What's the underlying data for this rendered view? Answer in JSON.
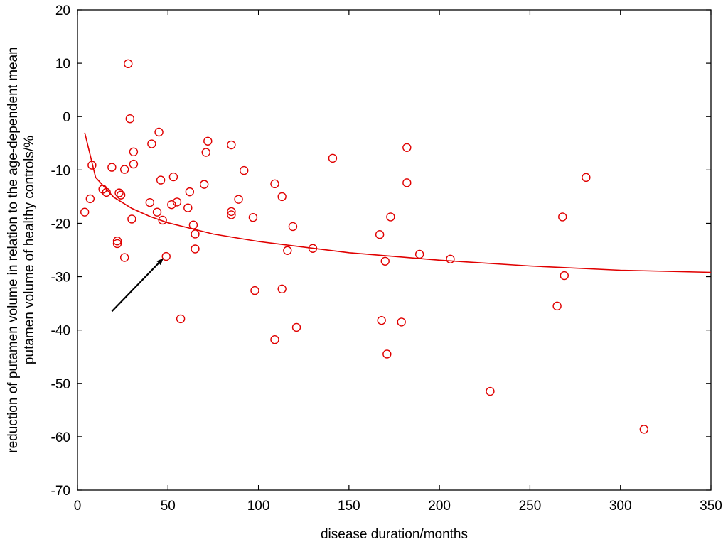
{
  "chart_data": {
    "type": "scatter",
    "title": "",
    "xlabel": "disease duration/months",
    "ylabel_lines": [
      "reduction of putamen volume in relation to the age-dependent mean",
      "putamen volume of healthy controls/%"
    ],
    "xlim": [
      0,
      350
    ],
    "ylim": [
      -70,
      20
    ],
    "xticks": [
      0,
      50,
      100,
      150,
      200,
      250,
      300,
      350
    ],
    "yticks": [
      20,
      10,
      0,
      -10,
      -20,
      -30,
      -40,
      -50,
      -60,
      -70
    ],
    "xtick_labels": [
      "0",
      "50",
      "100",
      "150",
      "200",
      "250",
      "300",
      "350"
    ],
    "ytick_labels": [
      "20",
      "10",
      "0",
      "-10",
      "-20",
      "-30",
      "-40",
      "-50",
      "-60",
      "-70"
    ],
    "grid": false,
    "marker_color": "#e00000",
    "fit_color": "#e00000",
    "arrow_color": "#000000",
    "series": [
      {
        "marker": "open-circle",
        "points": [
          [
            4,
            -17.9
          ],
          [
            7,
            -15.4
          ],
          [
            8,
            -9.1
          ],
          [
            14,
            -13.6
          ],
          [
            16,
            -14.2
          ],
          [
            19,
            -9.5
          ],
          [
            22,
            -23.3
          ],
          [
            22,
            -23.8
          ],
          [
            23,
            -14.3
          ],
          [
            24,
            -14.7
          ],
          [
            26,
            -26.4
          ],
          [
            26,
            -9.9
          ],
          [
            28,
            9.9
          ],
          [
            29,
            -0.4
          ],
          [
            30,
            -19.2
          ],
          [
            31,
            -8.9
          ],
          [
            31,
            -6.6
          ],
          [
            40,
            -16.1
          ],
          [
            41,
            -5.1
          ],
          [
            44,
            -17.9
          ],
          [
            45,
            -2.9
          ],
          [
            46,
            -11.9
          ],
          [
            47,
            -19.4
          ],
          [
            49,
            -26.2
          ],
          [
            52,
            -16.5
          ],
          [
            53,
            -11.3
          ],
          [
            55,
            -16.0
          ],
          [
            57,
            -37.9
          ],
          [
            61,
            -17.1
          ],
          [
            62,
            -14.1
          ],
          [
            64,
            -20.3
          ],
          [
            65,
            -22.0
          ],
          [
            65,
            -24.8
          ],
          [
            70,
            -12.7
          ],
          [
            71,
            -6.7
          ],
          [
            72,
            -4.6
          ],
          [
            85,
            -5.3
          ],
          [
            85,
            -17.8
          ],
          [
            85,
            -18.4
          ],
          [
            89,
            -15.5
          ],
          [
            92,
            -10.1
          ],
          [
            97,
            -18.9
          ],
          [
            98,
            -32.6
          ],
          [
            109,
            -12.6
          ],
          [
            109,
            -41.8
          ],
          [
            113,
            -15.0
          ],
          [
            113,
            -32.3
          ],
          [
            116,
            -25.1
          ],
          [
            119,
            -20.6
          ],
          [
            121,
            -39.5
          ],
          [
            130,
            -24.7
          ],
          [
            141,
            -7.8
          ],
          [
            167,
            -22.1
          ],
          [
            168,
            -38.2
          ],
          [
            170,
            -27.1
          ],
          [
            171,
            -44.5
          ],
          [
            173,
            -18.8
          ],
          [
            182,
            -5.8
          ],
          [
            182,
            -12.4
          ],
          [
            179,
            -38.5
          ],
          [
            189,
            -25.8
          ],
          [
            206,
            -26.7
          ],
          [
            228,
            -51.5
          ],
          [
            265,
            -35.5
          ],
          [
            268,
            -18.8
          ],
          [
            269,
            -29.8
          ],
          [
            281,
            -11.4
          ],
          [
            313,
            -58.6
          ]
        ]
      }
    ],
    "fit_curve": {
      "form": "logarithmic",
      "points": [
        [
          4,
          -3.0
        ],
        [
          10,
          -11.4
        ],
        [
          20,
          -15.1
        ],
        [
          30,
          -17.2
        ],
        [
          40,
          -18.7
        ],
        [
          50,
          -19.9
        ],
        [
          75,
          -22.0
        ],
        [
          100,
          -23.4
        ],
        [
          150,
          -25.5
        ],
        [
          200,
          -26.9
        ],
        [
          250,
          -28.0
        ],
        [
          300,
          -28.8
        ],
        [
          350,
          -29.2
        ]
      ]
    },
    "annotation": {
      "type": "arrow",
      "from": [
        19,
        -36.5
      ],
      "to": [
        47,
        -26.7
      ]
    }
  }
}
